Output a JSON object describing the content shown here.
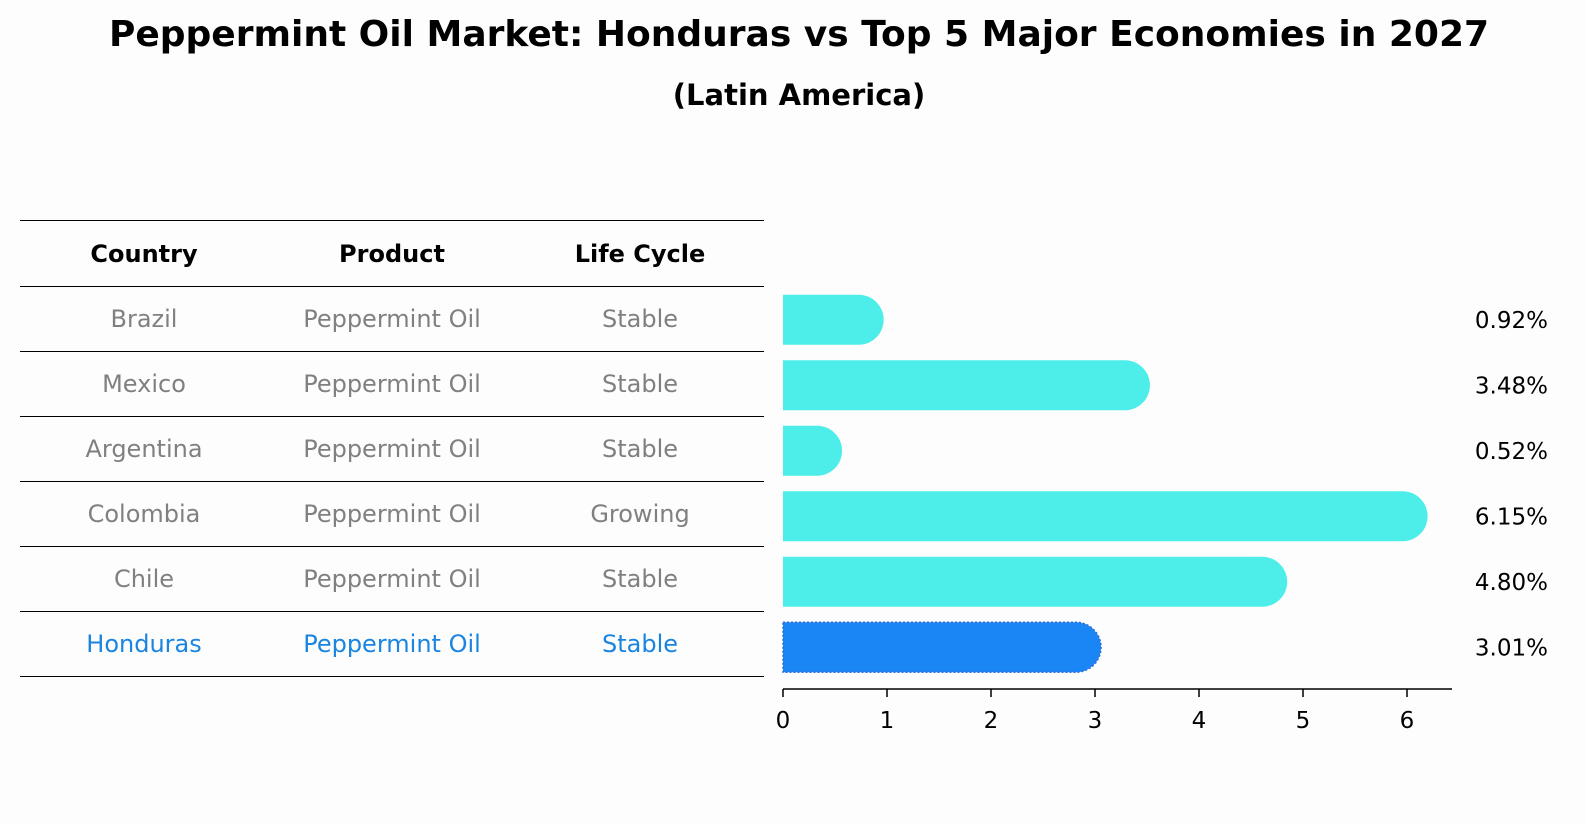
{
  "title": "Peppermint Oil Market: Honduras vs Top 5 Major Economies in 2027",
  "subtitle": "(Latin America)",
  "table": {
    "headers": [
      "Country",
      "Product",
      "Life Cycle"
    ],
    "rows": [
      {
        "country": "Brazil",
        "product": "Peppermint Oil",
        "life_cycle": "Stable"
      },
      {
        "country": "Mexico",
        "product": "Peppermint Oil",
        "life_cycle": "Stable"
      },
      {
        "country": "Argentina",
        "product": "Peppermint Oil",
        "life_cycle": "Stable"
      },
      {
        "country": "Colombia",
        "product": "Peppermint Oil",
        "life_cycle": "Growing"
      },
      {
        "country": "Chile",
        "product": "Peppermint Oil",
        "life_cycle": "Stable"
      },
      {
        "country": "Honduras",
        "product": "Peppermint Oil",
        "life_cycle": "Stable"
      }
    ]
  },
  "colors": {
    "bar": "#4deeea",
    "highlight_bar": "#1a85f5",
    "highlight_text": "#1a85e0",
    "muted_text": "#808080"
  },
  "chart_data": {
    "type": "bar",
    "orientation": "horizontal",
    "categories": [
      "Brazil",
      "Mexico",
      "Argentina",
      "Colombia",
      "Chile",
      "Honduras"
    ],
    "values": [
      0.92,
      3.48,
      0.52,
      6.15,
      4.8,
      3.01
    ],
    "value_labels": [
      "0.92%",
      "3.48%",
      "0.52%",
      "6.15%",
      "4.80%",
      "3.01%"
    ],
    "highlight": "Honduras",
    "xlim": [
      0,
      6.46
    ],
    "xticks": [
      0,
      1,
      2,
      3,
      4,
      5,
      6
    ],
    "xtick_labels": [
      "0",
      "1",
      "2",
      "3",
      "4",
      "5",
      "6"
    ],
    "grid": false,
    "legend": "none"
  }
}
